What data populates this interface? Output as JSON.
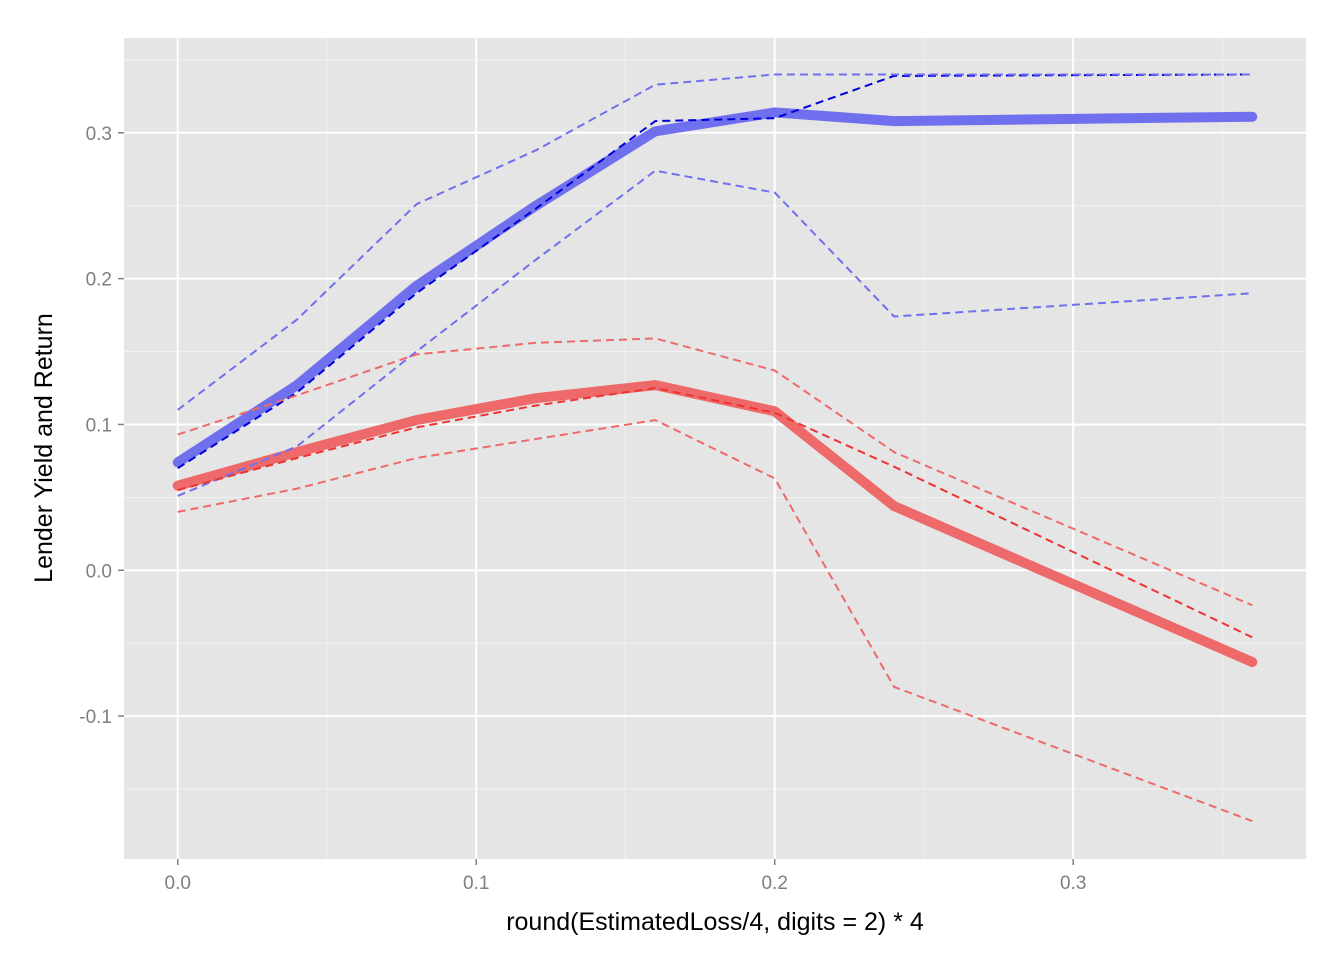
{
  "chart_data": {
    "type": "line",
    "title": "",
    "xlabel": "round(EstimatedLoss/4, digits = 2) * 4",
    "ylabel": "Lender Yield and Return",
    "xlim": [
      -0.018,
      0.378
    ],
    "ylim": [
      -0.198,
      0.365
    ],
    "grid": true,
    "legend": "none",
    "x_ticks": [
      0.0,
      0.1,
      0.2,
      0.3
    ],
    "x_tick_labels": [
      "0.0",
      "0.1",
      "0.2",
      "0.3"
    ],
    "y_ticks": [
      -0.1,
      0.0,
      0.1,
      0.2,
      0.3
    ],
    "y_tick_labels": [
      "-0.1",
      "0.0",
      "0.1",
      "0.2",
      "0.3"
    ],
    "x": [
      0.0,
      0.04,
      0.08,
      0.12,
      0.16,
      0.2,
      0.24,
      0.36
    ],
    "colors": {
      "panel": "#e5e5e5",
      "grid_major": "#ffffff",
      "grid_minor": "#f2f2f2",
      "yield": "#7070ee",
      "yield_median": "#0000dd",
      "return": "#ee6a6a",
      "return_median": "#ee3333"
    },
    "series": [
      {
        "group": "yield",
        "style": "mean-thick",
        "values": [
          0.074,
          0.127,
          0.195,
          0.25,
          0.301,
          0.314,
          0.308,
          0.311
        ]
      },
      {
        "group": "yield",
        "style": "median-dashed",
        "values": [
          0.07,
          0.122,
          0.19,
          0.248,
          0.308,
          0.31,
          0.339,
          0.34
        ]
      },
      {
        "group": "yield",
        "style": "upper-dashed",
        "values": [
          0.11,
          0.172,
          0.251,
          0.288,
          0.333,
          0.34,
          0.34,
          0.34
        ]
      },
      {
        "group": "yield",
        "style": "lower-dashed",
        "values": [
          0.051,
          0.085,
          0.15,
          0.213,
          0.274,
          0.259,
          0.174,
          0.19
        ]
      },
      {
        "group": "return",
        "style": "mean-thick",
        "values": [
          0.058,
          0.081,
          0.103,
          0.118,
          0.127,
          0.109,
          0.044,
          -0.063
        ]
      },
      {
        "group": "return",
        "style": "median-dashed",
        "values": [
          0.055,
          0.077,
          0.098,
          0.113,
          0.125,
          0.108,
          0.071,
          -0.046
        ]
      },
      {
        "group": "return",
        "style": "upper-dashed",
        "values": [
          0.093,
          0.12,
          0.148,
          0.156,
          0.159,
          0.137,
          0.081,
          -0.024
        ]
      },
      {
        "group": "return",
        "style": "lower-dashed",
        "values": [
          0.04,
          0.056,
          0.077,
          0.09,
          0.103,
          0.063,
          -0.08,
          -0.172
        ]
      }
    ]
  }
}
